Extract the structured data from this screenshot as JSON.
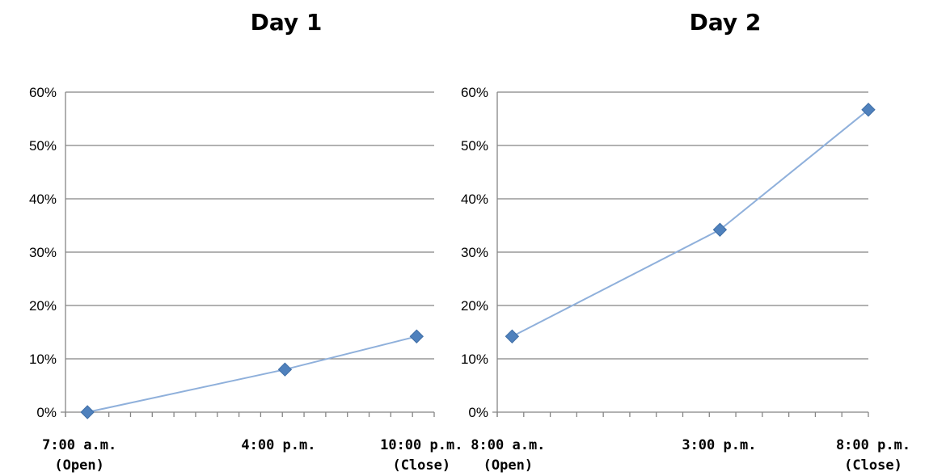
{
  "chart_data": [
    {
      "type": "line",
      "title": "Day 1",
      "xlabel": "",
      "ylabel": "",
      "ylim": [
        0,
        0.6
      ],
      "y_tick_labels": [
        "0%",
        "10%",
        "20%",
        "30%",
        "40%",
        "50%",
        "60%"
      ],
      "x_category_labels": [
        {
          "lines": [
            "7:00 a.m.",
            "(Open)"
          ]
        },
        {
          "lines": [
            "4:00 p.m."
          ]
        },
        {
          "lines": [
            "10:00 p.m.",
            "(Close)"
          ]
        }
      ],
      "points": [
        {
          "x": "7:00 a.m.",
          "y": 0.0
        },
        {
          "x": "4:00 p.m.",
          "y": 0.08
        },
        {
          "x": "10:00 p.m.",
          "y": 0.142
        }
      ],
      "x_hours": [
        7,
        16,
        22
      ],
      "grid": true,
      "line_color": "#8fb0db",
      "marker_color": "#4f81bd",
      "marker": "diamond"
    },
    {
      "type": "line",
      "title": "Day 2",
      "xlabel": "",
      "ylabel": "",
      "ylim": [
        0,
        0.6
      ],
      "y_tick_labels": [
        "0%",
        "10%",
        "20%",
        "30%",
        "40%",
        "50%",
        "60%"
      ],
      "x_category_labels": [
        {
          "lines": [
            "8:00 a.m.",
            "(Open)"
          ]
        },
        {
          "lines": [
            "3:00 p.m."
          ]
        },
        {
          "lines": [
            "8:00 p.m.",
            "(Close)"
          ]
        }
      ],
      "points": [
        {
          "x": "8:00 a.m.",
          "y": 0.142
        },
        {
          "x": "3:00 p.m.",
          "y": 0.342
        },
        {
          "x": "8:00 p.m.",
          "y": 0.567
        }
      ],
      "x_hours": [
        8,
        15,
        20
      ],
      "grid": true,
      "line_color": "#8fb0db",
      "marker_color": "#4f81bd",
      "marker": "diamond"
    }
  ]
}
